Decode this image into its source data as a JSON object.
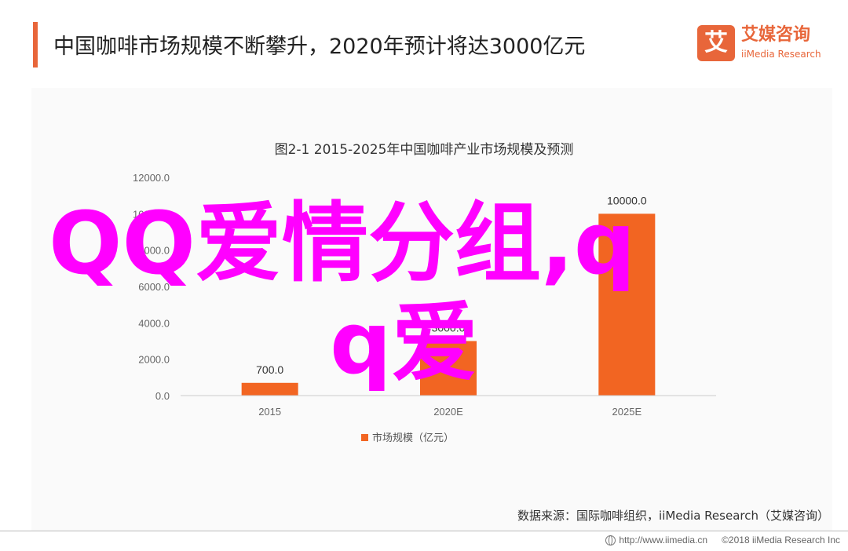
{
  "header": {
    "title": "中国咖啡市场规模不断攀升，2020年预计将达3000亿元",
    "accent_color": "#e8663a"
  },
  "logo": {
    "mark_text": "艾",
    "cn_text": "艾媒咨询",
    "en_text": "iiMedia Research",
    "color": "#e8663a"
  },
  "chart_data": {
    "type": "bar",
    "title": "图2-1 2015-2025年中国咖啡产业市场规模及预测",
    "categories": [
      "2015",
      "2020E",
      "2025E"
    ],
    "series": [
      {
        "name": "市场规模（亿元）",
        "values": [
          700,
          3000,
          10000
        ],
        "data_labels": [
          "700.0",
          "3000.0",
          "10000.0"
        ],
        "color": "#f26522"
      }
    ],
    "y_ticks": [
      "0.0",
      "2000.0",
      "4000.0",
      "6000.0",
      "8000.0",
      "10000.0",
      "12000.0"
    ],
    "ylim": [
      0,
      12000
    ],
    "grid": false,
    "legend_position": "bottom"
  },
  "source": "数据来源：国际咖啡组织，iiMedia Research（艾媒咨询）",
  "footer": {
    "url": "http://www.iimedia.cn",
    "copyright": "©2018  iiMedia Research  Inc"
  },
  "overlay": {
    "line1": "QQ爱情分组,q",
    "line2": "q爱",
    "color": "#ff00ff"
  }
}
